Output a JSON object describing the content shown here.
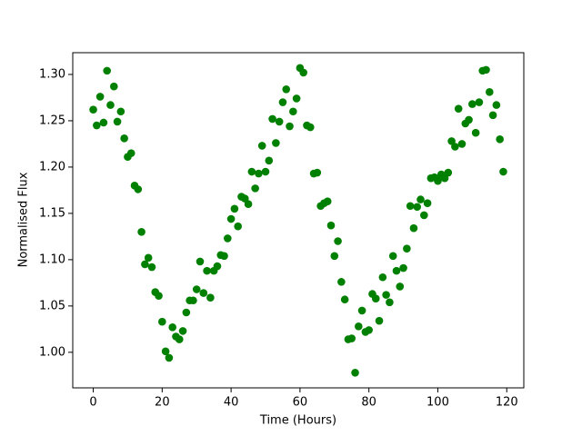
{
  "chart_data": {
    "type": "scatter",
    "xlabel": "Time (Hours)",
    "ylabel": "Normalised Flux",
    "series": [
      {
        "color": "#008000",
        "x": [
          0,
          1,
          2,
          3,
          4,
          5,
          6,
          7,
          8,
          9,
          10,
          11,
          12,
          13,
          14,
          15,
          16,
          17,
          18,
          19,
          20,
          21,
          22,
          23,
          24,
          25,
          26,
          27,
          28,
          29,
          30,
          31,
          32,
          33,
          34,
          35,
          36,
          37,
          38,
          39,
          40,
          41,
          42,
          43,
          44,
          45,
          46,
          47,
          48,
          49,
          50,
          51,
          52,
          53,
          54,
          55,
          56,
          57,
          58,
          59,
          60,
          61,
          62,
          63,
          64,
          65,
          66,
          67,
          68,
          69,
          70,
          71,
          72,
          73,
          74,
          75,
          76,
          77,
          78,
          79,
          80,
          81,
          82,
          83,
          84,
          85,
          86,
          87,
          88,
          89,
          90,
          91,
          92,
          93,
          94,
          95,
          96,
          97,
          98,
          99,
          100,
          101,
          102,
          103,
          104,
          105,
          106,
          107,
          108,
          109,
          110,
          111,
          112,
          113,
          114,
          115,
          116,
          117,
          118,
          119
        ],
        "values": [
          1.262,
          1.245,
          1.276,
          1.248,
          1.304,
          1.267,
          1.287,
          1.249,
          1.26,
          1.231,
          1.211,
          1.215,
          1.18,
          1.176,
          1.13,
          1.095,
          1.102,
          1.092,
          1.065,
          1.061,
          1.033,
          1.001,
          0.994,
          1.027,
          1.017,
          1.014,
          1.023,
          1.043,
          1.056,
          1.056,
          1.068,
          1.098,
          1.064,
          1.088,
          1.059,
          1.088,
          1.093,
          1.105,
          1.104,
          1.123,
          1.144,
          1.155,
          1.136,
          1.168,
          1.166,
          1.16,
          1.195,
          1.177,
          1.193,
          1.223,
          1.195,
          1.207,
          1.252,
          1.226,
          1.249,
          1.27,
          1.284,
          1.244,
          1.26,
          1.274,
          1.307,
          1.302,
          1.245,
          1.243,
          1.193,
          1.194,
          1.158,
          1.161,
          1.163,
          1.137,
          1.104,
          1.12,
          1.076,
          1.057,
          1.014,
          1.015,
          0.978,
          1.028,
          1.045,
          1.022,
          1.024,
          1.063,
          1.058,
          1.034,
          1.081,
          1.062,
          1.054,
          1.104,
          1.088,
          1.071,
          1.091,
          1.112,
          1.158,
          1.134,
          1.157,
          1.165,
          1.148,
          1.161,
          1.188,
          1.189,
          1.185,
          1.192,
          1.188,
          1.194,
          1.228,
          1.222,
          1.263,
          1.225,
          1.247,
          1.251,
          1.268,
          1.237,
          1.27,
          1.304,
          1.305,
          1.281,
          1.256,
          1.267,
          1.23,
          1.195
        ]
      }
    ],
    "xlim": [
      -5.95,
      124.95
    ],
    "ylim": [
      0.9616,
      1.3235
    ],
    "xticks": [
      0,
      20,
      40,
      60,
      80,
      100,
      120
    ],
    "yticks": [
      {
        "value": 1.0,
        "label": "1.00"
      },
      {
        "value": 1.05,
        "label": "1.05"
      },
      {
        "value": 1.1,
        "label": "1.10"
      },
      {
        "value": 1.15,
        "label": "1.15"
      },
      {
        "value": 1.2,
        "label": "1.20"
      },
      {
        "value": 1.25,
        "label": "1.25"
      },
      {
        "value": 1.3,
        "label": "1.30"
      }
    ]
  }
}
